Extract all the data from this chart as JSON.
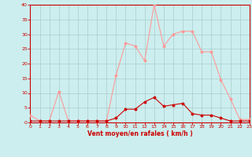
{
  "xlabel": "Vent moyen/en rafales ( km/h )",
  "x": [
    0,
    1,
    2,
    3,
    4,
    5,
    6,
    7,
    8,
    9,
    10,
    11,
    12,
    13,
    14,
    15,
    16,
    17,
    18,
    19,
    20,
    21,
    22,
    23
  ],
  "rafales": [
    2.5,
    0.5,
    0.5,
    10.5,
    0.5,
    0.5,
    0.5,
    0.5,
    0.5,
    16,
    27,
    26,
    21,
    40,
    26,
    30,
    31,
    31,
    24,
    24,
    14.5,
    8,
    1,
    1
  ],
  "moyen": [
    0.5,
    0.5,
    0.5,
    0.5,
    0.5,
    0.5,
    0.5,
    0.5,
    0.5,
    1.5,
    4.5,
    4.5,
    7,
    8.5,
    5.5,
    6,
    6.5,
    3,
    2.5,
    2.5,
    1.5,
    0.5,
    0.5,
    0.5
  ],
  "rafales_color": "#ff9999",
  "moyen_color": "#cc0000",
  "bg_color": "#cceeee",
  "grid_color": "#aacccc",
  "spine_color": "#cc0000",
  "tick_color": "#cc0000",
  "ylim": [
    0,
    40
  ],
  "xlim": [
    0,
    23
  ],
  "yticks": [
    0,
    5,
    10,
    15,
    20,
    25,
    30,
    35,
    40
  ],
  "xticks": [
    0,
    1,
    2,
    3,
    4,
    5,
    6,
    7,
    8,
    9,
    10,
    11,
    12,
    13,
    14,
    15,
    16,
    17,
    18,
    19,
    20,
    21,
    22,
    23
  ]
}
